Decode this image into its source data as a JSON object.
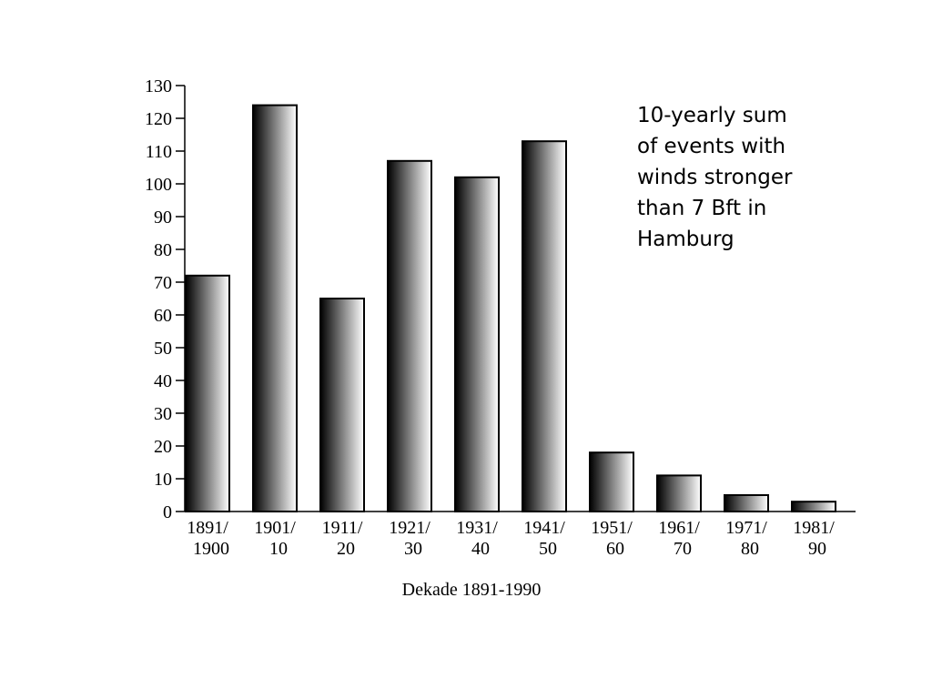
{
  "chart_data": {
    "type": "bar",
    "categories": [
      [
        "1891/",
        "1900"
      ],
      [
        "1901/",
        "10"
      ],
      [
        "1911/",
        "20"
      ],
      [
        "1921/",
        "30"
      ],
      [
        "1931/",
        "40"
      ],
      [
        "1941/",
        "50"
      ],
      [
        "1951/",
        "60"
      ],
      [
        "1961/",
        "70"
      ],
      [
        "1971/",
        "80"
      ],
      [
        "1981/",
        "90"
      ]
    ],
    "values": [
      72,
      124,
      65,
      107,
      102,
      113,
      18,
      11,
      5,
      3
    ],
    "xlabel": "Dekade 1891-1990",
    "ylabel": "",
    "ylim": [
      0,
      130
    ],
    "yticks": [
      0,
      10,
      20,
      30,
      40,
      50,
      60,
      70,
      80,
      90,
      100,
      110,
      120,
      130
    ],
    "grid": false,
    "annotation": [
      "10-yearly sum",
      "of events with",
      "winds stronger",
      "than 7 Bft in",
      "Hamburg"
    ],
    "colors": {
      "bar_dark": "#000000",
      "bar_light": "#ffffff",
      "outline": "#000000"
    }
  }
}
